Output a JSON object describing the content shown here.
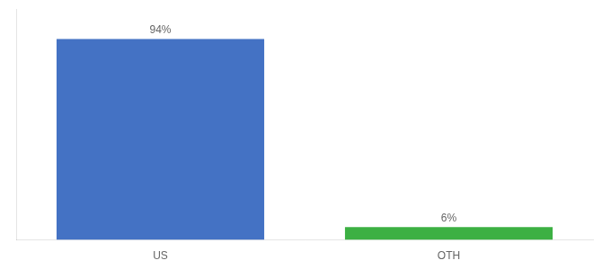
{
  "chart_data": {
    "type": "bar",
    "categories": [
      "US",
      "OTH"
    ],
    "values": [
      94,
      6
    ],
    "value_labels": [
      "94%",
      "6%"
    ],
    "colors": [
      "#4472c4",
      "#3cb043"
    ],
    "ylim": [
      0,
      108
    ],
    "grid": false,
    "data_labels": true,
    "tick_labels": "x"
  }
}
